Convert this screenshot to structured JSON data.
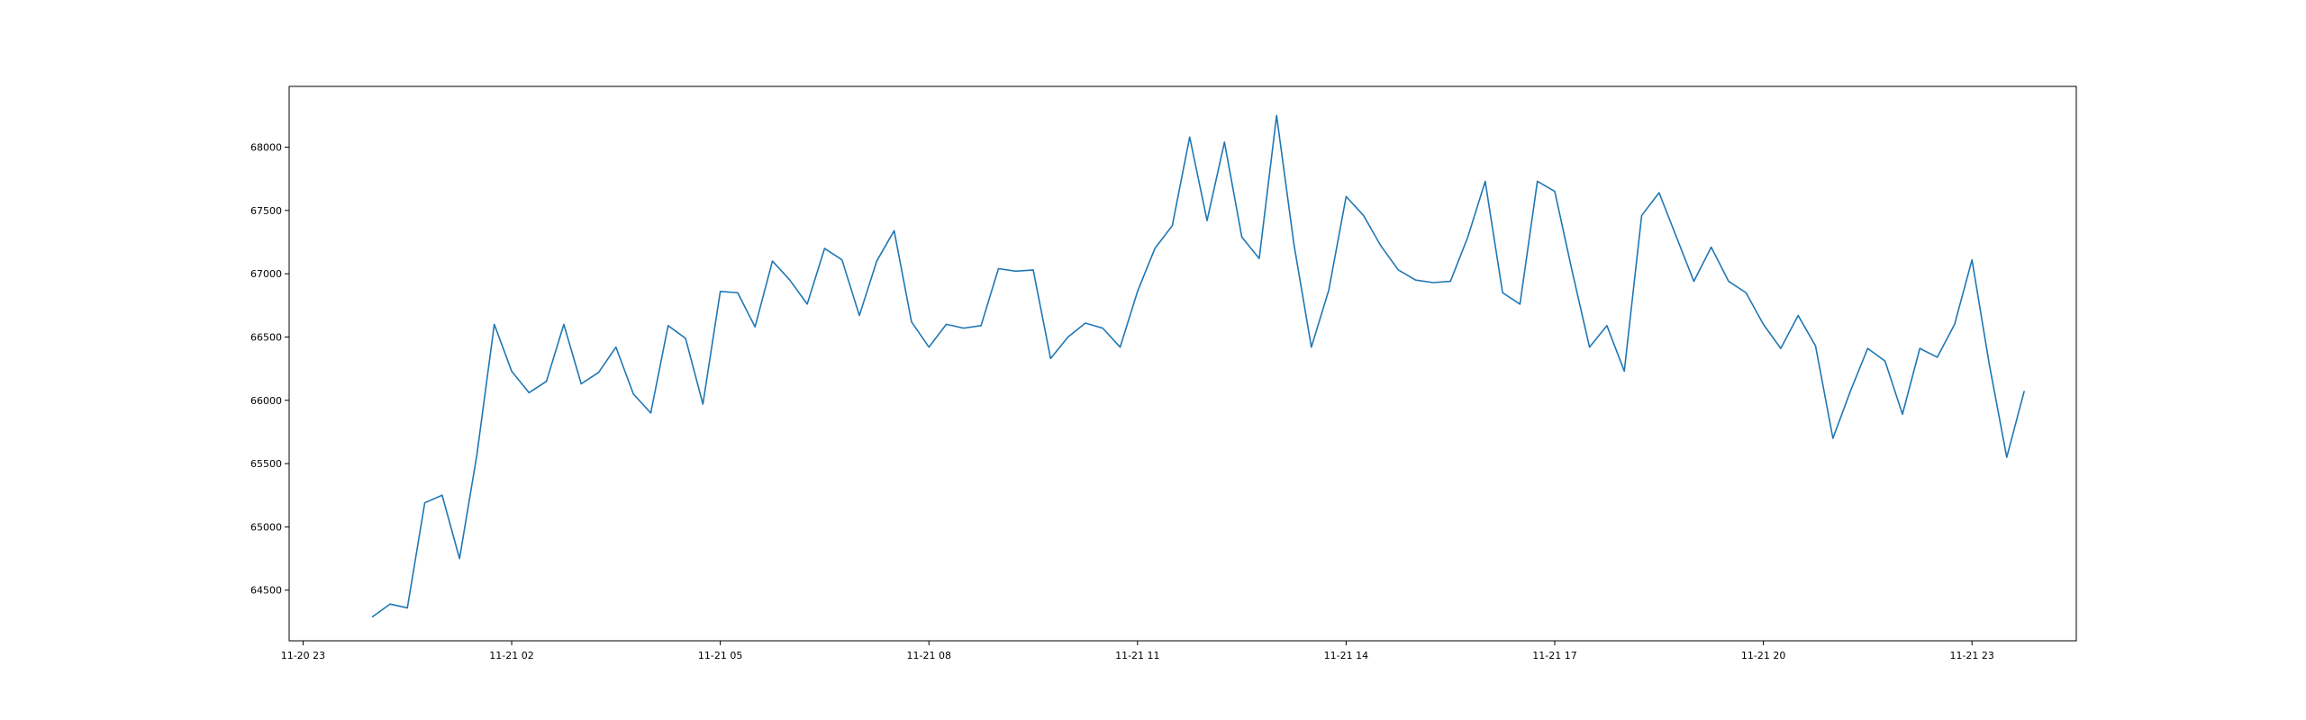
{
  "chart_data": {
    "type": "line",
    "title": "",
    "xlabel": "",
    "ylabel": "",
    "grid": false,
    "legend": "none",
    "colors": {
      "line": "#1f77b4",
      "axes": "#000000",
      "background": "#ffffff"
    },
    "xlim": [
      "2024-11-20 22:48",
      "2024-11-22 00:30"
    ],
    "ylim": [
      64100,
      84430
    ],
    "x_ticks": [
      {
        "value": "2024-11-20 23:00",
        "label": "11-20 23"
      },
      {
        "value": "2024-11-21 02:00",
        "label": "11-21 02"
      },
      {
        "value": "2024-11-21 05:00",
        "label": "11-21 05"
      },
      {
        "value": "2024-11-21 08:00",
        "label": "11-21 08"
      },
      {
        "value": "2024-11-21 11:00",
        "label": "11-21 11"
      },
      {
        "value": "2024-11-21 14:00",
        "label": "11-21 14"
      },
      {
        "value": "2024-11-21 17:00",
        "label": "11-21 17"
      },
      {
        "value": "2024-11-21 20:00",
        "label": "11-21 20"
      },
      {
        "value": "2024-11-21 23:00",
        "label": "11-21 23"
      }
    ],
    "y_ticks": [
      {
        "value": 64500,
        "label": "64500"
      },
      {
        "value": 65000,
        "label": "65000"
      },
      {
        "value": 65500,
        "label": "65500"
      },
      {
        "value": 66000,
        "label": "66000"
      },
      {
        "value": 66500,
        "label": "66500"
      },
      {
        "value": 67000,
        "label": "67000"
      },
      {
        "value": 67500,
        "label": "67500"
      },
      {
        "value": 68000,
        "label": "68000"
      }
    ],
    "x": [
      "2024-11-21 00:00",
      "2024-11-21 00:15",
      "2024-11-21 00:30",
      "2024-11-21 00:45",
      "2024-11-21 01:00",
      "2024-11-21 01:15",
      "2024-11-21 01:30",
      "2024-11-21 01:45",
      "2024-11-21 02:00",
      "2024-11-21 02:15",
      "2024-11-21 02:30",
      "2024-11-21 02:45",
      "2024-11-21 03:00",
      "2024-11-21 03:15",
      "2024-11-21 03:30",
      "2024-11-21 03:45",
      "2024-11-21 04:00",
      "2024-11-21 04:15",
      "2024-11-21 04:30",
      "2024-11-21 04:45",
      "2024-11-21 05:00",
      "2024-11-21 05:15",
      "2024-11-21 05:30",
      "2024-11-21 05:45",
      "2024-11-21 06:00",
      "2024-11-21 06:15",
      "2024-11-21 06:30",
      "2024-11-21 06:45",
      "2024-11-21 07:00",
      "2024-11-21 07:15",
      "2024-11-21 07:30",
      "2024-11-21 07:45",
      "2024-11-21 08:00",
      "2024-11-21 08:15",
      "2024-11-21 08:30",
      "2024-11-21 08:45",
      "2024-11-21 09:00",
      "2024-11-21 09:15",
      "2024-11-21 09:30",
      "2024-11-21 09:45",
      "2024-11-21 10:00",
      "2024-11-21 10:15",
      "2024-11-21 10:30",
      "2024-11-21 10:45",
      "2024-11-21 11:00",
      "2024-11-21 11:15",
      "2024-11-21 11:30",
      "2024-11-21 11:45",
      "2024-11-21 12:00",
      "2024-11-21 12:15",
      "2024-11-21 12:30",
      "2024-11-21 12:45",
      "2024-11-21 13:00",
      "2024-11-21 13:15",
      "2024-11-21 13:30",
      "2024-11-21 13:45",
      "2024-11-21 14:00",
      "2024-11-21 14:15",
      "2024-11-21 14:30",
      "2024-11-21 14:45",
      "2024-11-21 15:00",
      "2024-11-21 15:15",
      "2024-11-21 15:30",
      "2024-11-21 15:45",
      "2024-11-21 16:00",
      "2024-11-21 16:15",
      "2024-11-21 16:30",
      "2024-11-21 16:45",
      "2024-11-21 17:00",
      "2024-11-21 17:15",
      "2024-11-21 17:30",
      "2024-11-21 17:45",
      "2024-11-21 18:00",
      "2024-11-21 18:15",
      "2024-11-21 18:30",
      "2024-11-21 18:45",
      "2024-11-21 19:00",
      "2024-11-21 19:15",
      "2024-11-21 19:30",
      "2024-11-21 19:45",
      "2024-11-21 20:00",
      "2024-11-21 20:15",
      "2024-11-21 20:30",
      "2024-11-21 20:45",
      "2024-11-21 21:00",
      "2024-11-21 21:15",
      "2024-11-21 21:30",
      "2024-11-21 21:45",
      "2024-11-21 22:00",
      "2024-11-21 22:15",
      "2024-11-21 22:30",
      "2024-11-21 22:45",
      "2024-11-21 23:00",
      "2024-11-21 23:15",
      "2024-11-21 23:30",
      "2024-11-21 23:45"
    ],
    "series": [
      {
        "values": [
          64290,
          64390,
          64360,
          65190,
          65250,
          64750,
          65570,
          66600,
          66230,
          66060,
          66150,
          66600,
          66130,
          66220,
          66420,
          66050,
          65900,
          66590,
          66490,
          65970,
          66860,
          66850,
          66580,
          67100,
          66950,
          66760,
          67200,
          67110,
          66670,
          67100,
          67340,
          66620,
          66420,
          66600,
          66570,
          66590,
          67040,
          67020,
          67030,
          66330,
          66500,
          66610,
          66570,
          66420,
          66860,
          67200,
          67380,
          68080,
          67420,
          68040,
          67290,
          67120,
          68250,
          67230,
          66420,
          66870,
          67610,
          67460,
          67220,
          67030,
          66950,
          66930,
          66940,
          67290,
          67730,
          66850,
          66760,
          67730,
          67650,
          67020,
          66420,
          66590,
          66230,
          67460,
          67640,
          67290,
          66940,
          67210,
          66940,
          66850,
          66600,
          66410,
          66670,
          66430,
          65700,
          66070,
          66410,
          66310,
          65890,
          66410,
          66340,
          66600,
          67110,
          66280,
          65550,
          66070
        ]
      }
    ]
  }
}
